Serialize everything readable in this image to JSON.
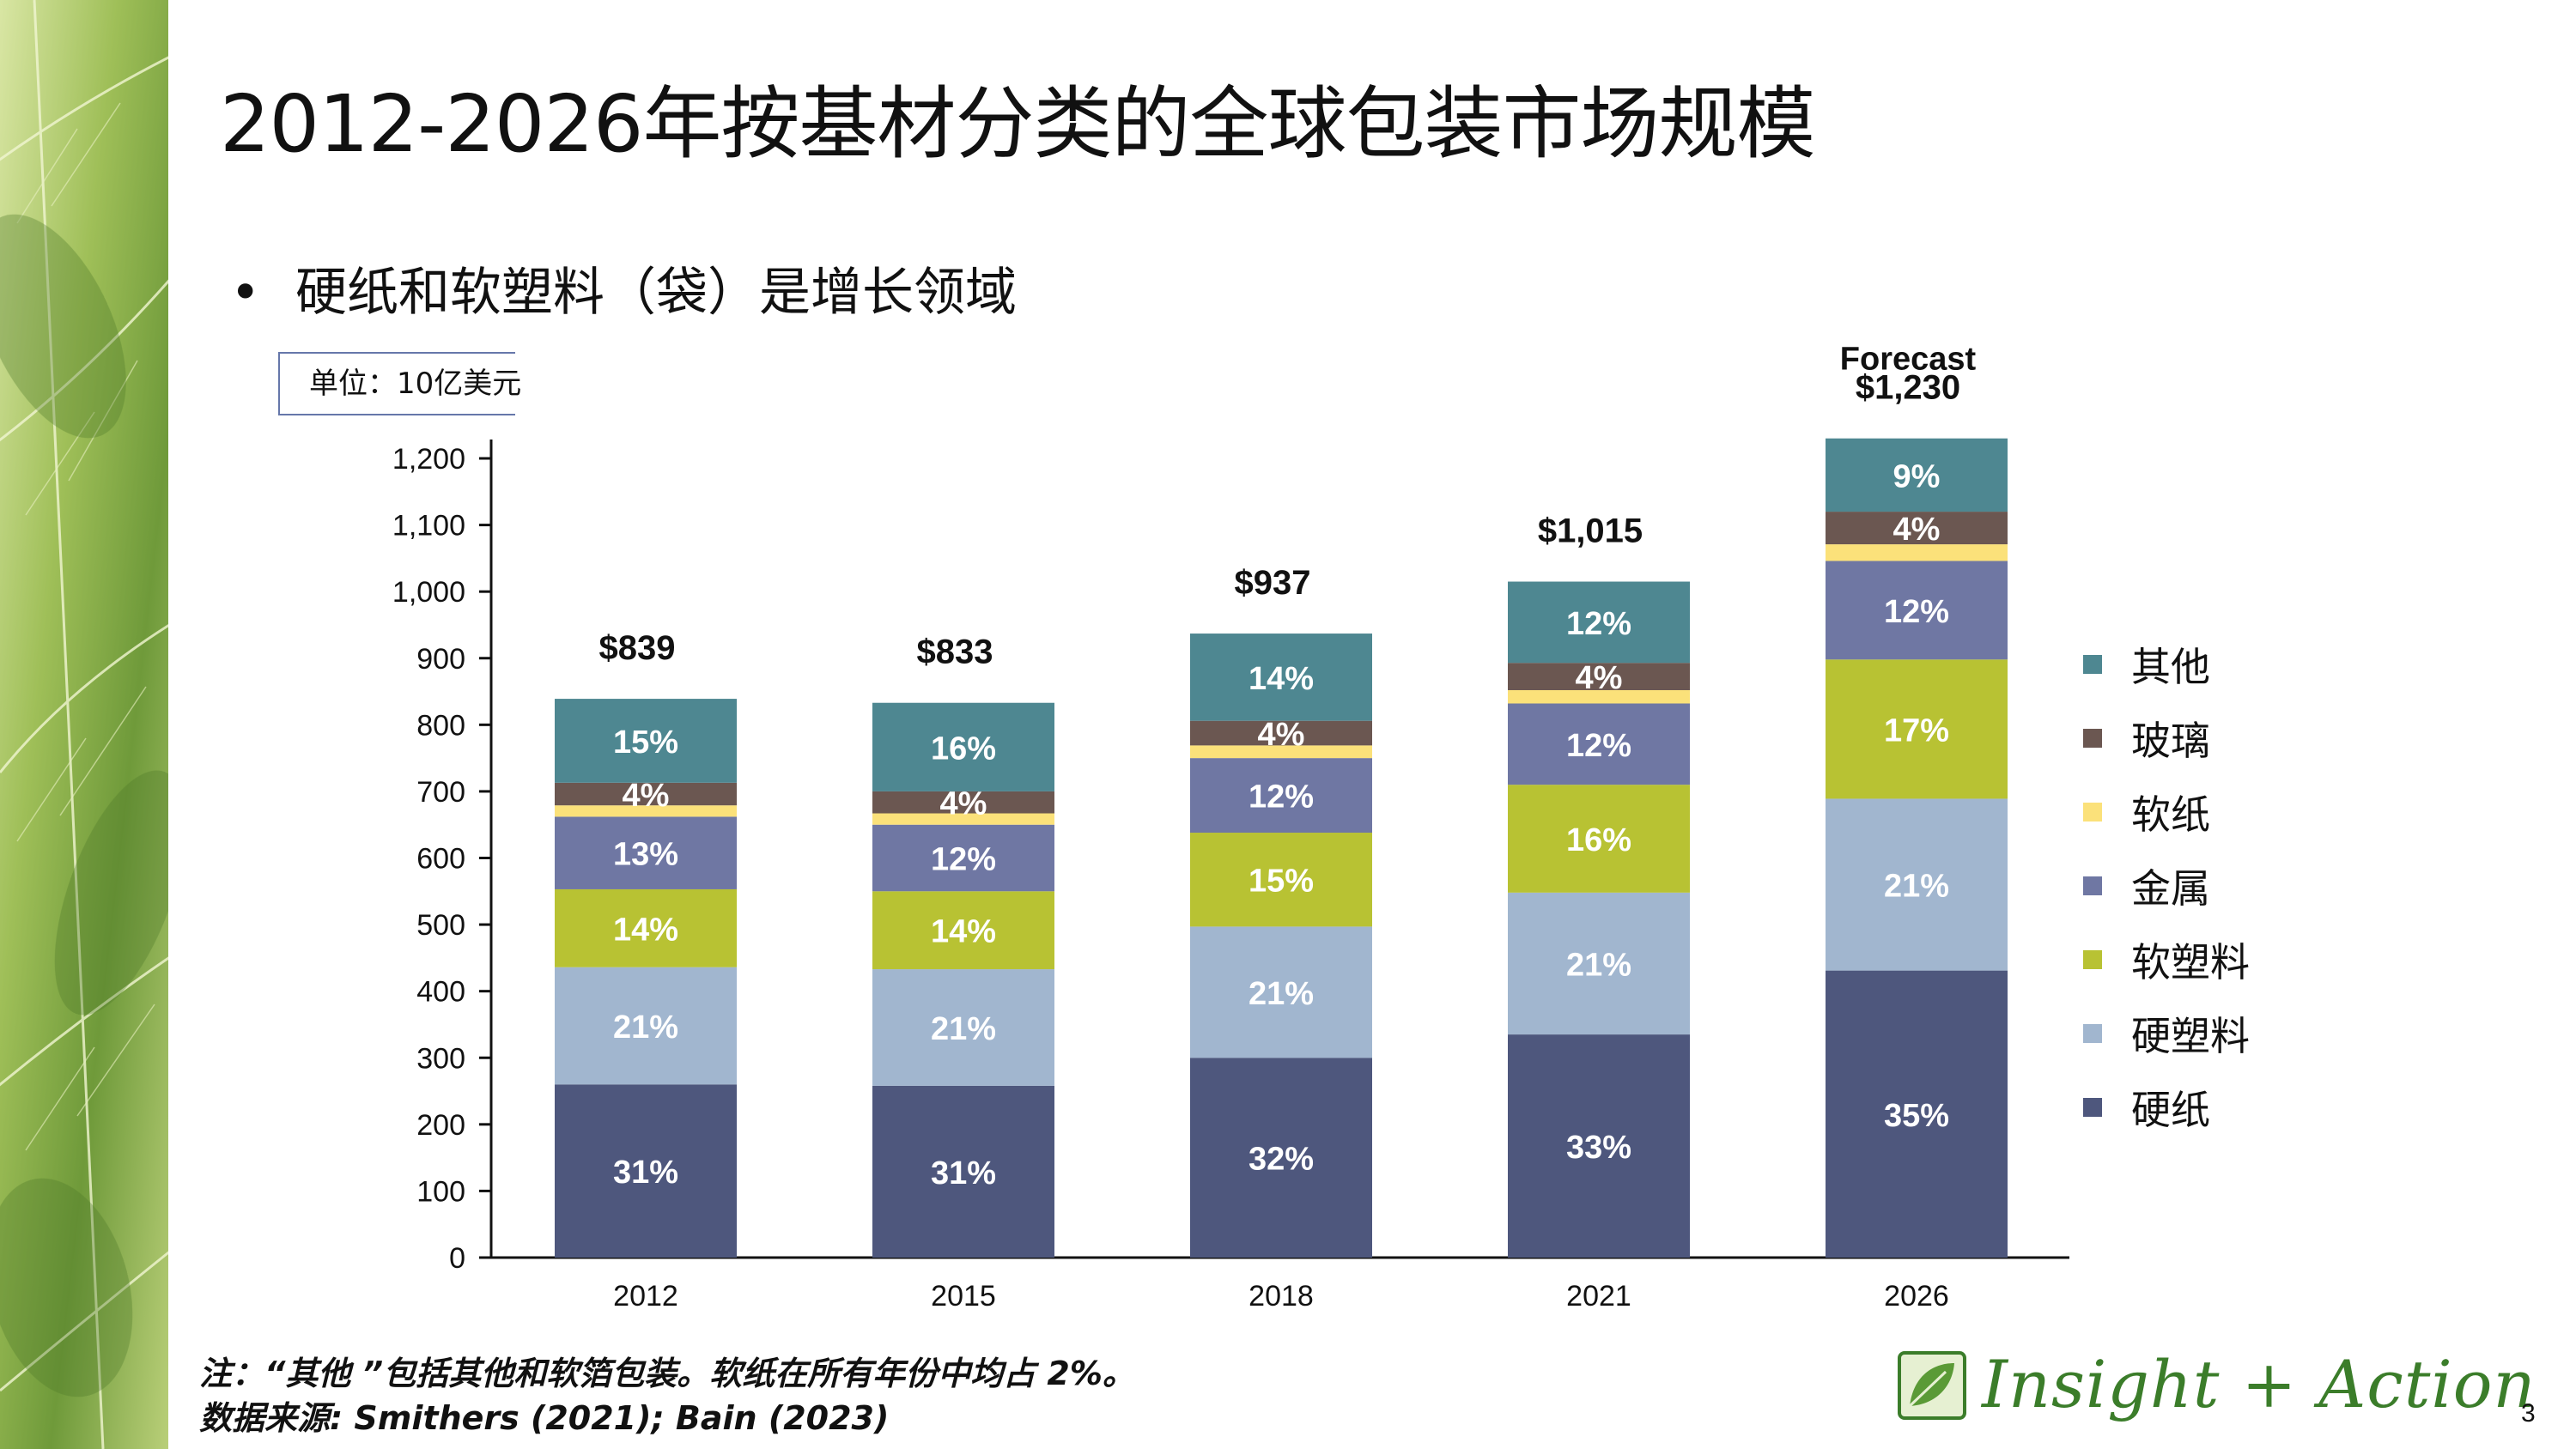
{
  "slide": {
    "title": "2012-2026年按基材分类的全球包装市场规模",
    "bullet": "硬纸和软塑料（袋）是增长领域",
    "unit": "单位：10亿美元",
    "footnote_line1": "注：“其他 ”包括其他和软箔包装。软纸在所有年份中均占 2%。",
    "footnote_line2": "数据来源: Smithers (2021); Bain (2023)",
    "logo_text": "Insight + Action",
    "page_number": "3"
  },
  "colors": {
    "other": "#4e8791",
    "glass": "#6b5751",
    "soft_paper": "#fbe17a",
    "metal": "#6f77a3",
    "flexible_plastic": "#b8c233",
    "rigid_plastic": "#a1b6cf",
    "hard_paper": "#4e577d"
  },
  "chart_data": {
    "type": "bar",
    "stacked": true,
    "title": "2012-2026年按基材分类的全球包装市场规模",
    "ylabel": "单位：10亿美元",
    "xlabel": "",
    "ylim": [
      0,
      1200
    ],
    "yticks": [
      "0",
      "100",
      "200",
      "300",
      "400",
      "500",
      "600",
      "700",
      "800",
      "900",
      "1,000",
      "1,100",
      "1,200"
    ],
    "categories": [
      "2012",
      "2015",
      "2018",
      "2021",
      "2026"
    ],
    "totals": [
      839,
      833,
      937,
      1015,
      1230
    ],
    "total_labels": [
      "$839",
      "$833",
      "$937",
      "$1,015",
      "$1,230"
    ],
    "forecast_label": "Forecast",
    "series": [
      {
        "name": "硬纸",
        "key": "hard_paper",
        "values": [
          260,
          258,
          300,
          335,
          431
        ],
        "labels": [
          "31%",
          "31%",
          "32%",
          "33%",
          "35%"
        ]
      },
      {
        "name": "硬塑料",
        "key": "rigid_plastic",
        "values": [
          176,
          175,
          197,
          213,
          258
        ],
        "labels": [
          "21%",
          "21%",
          "21%",
          "21%",
          "21%"
        ]
      },
      {
        "name": "软塑料",
        "key": "flexible_plastic",
        "values": [
          117,
          117,
          141,
          162,
          209
        ],
        "labels": [
          "14%",
          "14%",
          "15%",
          "16%",
          "17%"
        ]
      },
      {
        "name": "金属",
        "key": "metal",
        "values": [
          109,
          100,
          112,
          122,
          148
        ],
        "labels": [
          "13%",
          "12%",
          "12%",
          "12%",
          "12%"
        ]
      },
      {
        "name": "软纸",
        "key": "soft_paper",
        "values": [
          17,
          17,
          19,
          20,
          25
        ],
        "labels": [
          "",
          "",
          "",
          "",
          ""
        ]
      },
      {
        "name": "玻璃",
        "key": "glass",
        "values": [
          34,
          33,
          37,
          41,
          49
        ],
        "labels": [
          "4%",
          "4%",
          "4%",
          "4%",
          "4%"
        ]
      },
      {
        "name": "其他",
        "key": "other",
        "values": [
          126,
          133,
          131,
          122,
          110
        ],
        "labels": [
          "15%",
          "16%",
          "14%",
          "12%",
          "9%"
        ]
      }
    ],
    "legend": [
      "其他",
      "玻璃",
      "软纸",
      "金属",
      "软塑料",
      "硬塑料",
      "硬纸"
    ],
    "legend_position": "right"
  }
}
